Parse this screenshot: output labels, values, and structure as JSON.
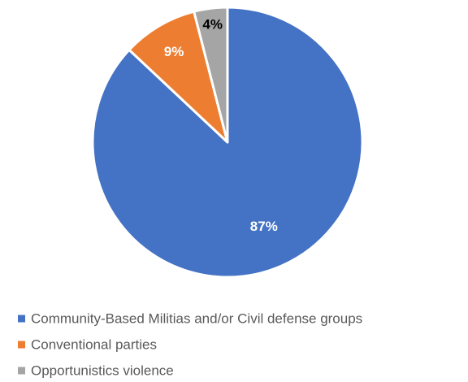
{
  "chart_data": {
    "type": "pie",
    "title": "",
    "slices": [
      {
        "label": "Community-Based Militias and/or Civil defense groups",
        "value": 87,
        "display": "87%",
        "color": "#4472C4",
        "label_color": "#FFFFFF"
      },
      {
        "label": "Conventional parties",
        "value": 9,
        "display": "9%",
        "color": "#ED7D31",
        "label_color": "#FFFFFF"
      },
      {
        "label": "Opportunistics violence",
        "value": 4,
        "display": "4%",
        "color": "#A5A5A5",
        "label_color": "#000000"
      }
    ],
    "start_angle": "top",
    "direction": "clockwise",
    "legend": {
      "position": "bottom"
    }
  }
}
